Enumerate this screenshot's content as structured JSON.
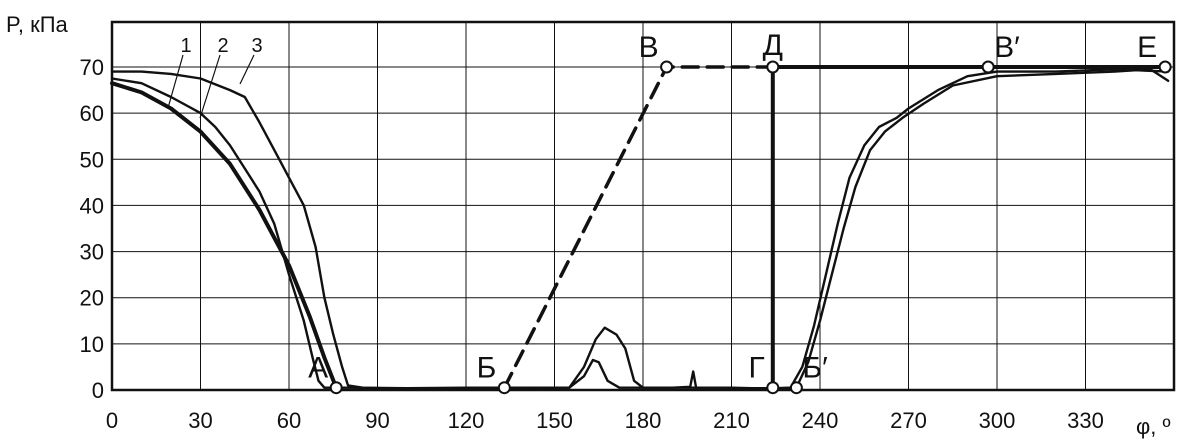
{
  "chart_data": {
    "type": "line",
    "ylabel": "P, кПа",
    "xlabel": "φ, º",
    "xlim": [
      0,
      360
    ],
    "ylim": [
      0,
      70
    ],
    "x_ticks": [
      0,
      30,
      60,
      90,
      120,
      150,
      180,
      210,
      240,
      270,
      300,
      330
    ],
    "y_ticks": [
      0,
      10,
      20,
      30,
      40,
      50,
      60,
      70
    ],
    "grid": true,
    "colors": {
      "line": "#111111",
      "marker_fill": "#ffffff"
    },
    "series": [
      {
        "name": "1",
        "style": "thick",
        "points": [
          [
            0,
            66.5
          ],
          [
            10,
            64.5
          ],
          [
            20,
            61
          ],
          [
            30,
            56
          ],
          [
            40,
            49
          ],
          [
            50,
            39
          ],
          [
            60,
            27
          ],
          [
            67,
            16
          ],
          [
            72,
            7
          ],
          [
            76,
            0.5
          ]
        ]
      },
      {
        "name": "2",
        "style": "thin",
        "points": [
          [
            0,
            67.5
          ],
          [
            10,
            66.5
          ],
          [
            20,
            63.5
          ],
          [
            30,
            60
          ],
          [
            35,
            57
          ],
          [
            40,
            53
          ],
          [
            45,
            48
          ],
          [
            50,
            43
          ],
          [
            55,
            36
          ],
          [
            60,
            25
          ],
          [
            65,
            15
          ],
          [
            68,
            7
          ],
          [
            70,
            2
          ],
          [
            72,
            0.5
          ],
          [
            80,
            0.5
          ],
          [
            100,
            0.3
          ],
          [
            130,
            0.4
          ],
          [
            155,
            0.5
          ],
          [
            160,
            3
          ],
          [
            163,
            6.5
          ],
          [
            165,
            6
          ],
          [
            168,
            2
          ],
          [
            172,
            0.5
          ],
          [
            190,
            0.5
          ],
          [
            210,
            0.5
          ],
          [
            222,
            0.3
          ],
          [
            232,
            0.5
          ],
          [
            236,
            6
          ],
          [
            240,
            15
          ],
          [
            244,
            25
          ],
          [
            248,
            35
          ],
          [
            252,
            44
          ],
          [
            257,
            52
          ],
          [
            262,
            56
          ],
          [
            268,
            59
          ],
          [
            275,
            62
          ],
          [
            285,
            66
          ],
          [
            300,
            68
          ],
          [
            320,
            68.5
          ],
          [
            340,
            69
          ],
          [
            352,
            69.5
          ],
          [
            358,
            67
          ]
        ]
      },
      {
        "name": "3",
        "style": "thin",
        "points": [
          [
            0,
            69
          ],
          [
            10,
            69
          ],
          [
            20,
            68.5
          ],
          [
            30,
            67.5
          ],
          [
            40,
            65
          ],
          [
            45,
            63.5
          ],
          [
            50,
            58
          ],
          [
            55,
            52
          ],
          [
            60,
            46
          ],
          [
            65,
            40
          ],
          [
            69,
            31
          ],
          [
            72,
            20
          ],
          [
            75,
            12
          ],
          [
            78,
            5
          ],
          [
            80,
            1
          ],
          [
            85,
            0.5
          ],
          [
            100,
            0.4
          ],
          [
            120,
            0.5
          ],
          [
            140,
            0.5
          ],
          [
            155,
            0.5
          ],
          [
            160,
            5
          ],
          [
            164,
            11
          ],
          [
            167,
            13.5
          ],
          [
            171,
            12
          ],
          [
            174,
            9
          ],
          [
            177,
            2
          ],
          [
            180,
            0.5
          ],
          [
            190,
            0.5
          ],
          [
            196,
            0.7
          ],
          [
            197,
            4
          ],
          [
            198,
            0.5
          ],
          [
            210,
            0.4
          ],
          [
            225,
            0.4
          ],
          [
            230,
            0.5
          ],
          [
            234,
            5
          ],
          [
            238,
            14
          ],
          [
            242,
            25
          ],
          [
            246,
            36
          ],
          [
            250,
            46
          ],
          [
            255,
            53
          ],
          [
            260,
            57
          ],
          [
            266,
            59
          ],
          [
            270,
            61
          ],
          [
            280,
            65
          ],
          [
            290,
            68
          ],
          [
            300,
            69
          ],
          [
            320,
            69
          ],
          [
            340,
            69.5
          ],
          [
            358,
            69
          ]
        ]
      },
      {
        "name": "dashed",
        "style": "dashed",
        "points": [
          [
            133,
            0.5
          ],
          [
            188,
            70
          ],
          [
            224,
            70
          ]
        ]
      },
      {
        "name": "step",
        "style": "thick",
        "points": [
          [
            224,
            0.5
          ],
          [
            224,
            70
          ],
          [
            357,
            70
          ]
        ]
      }
    ],
    "annotations": [
      {
        "label": "А",
        "x": 76,
        "y": 0.5,
        "anchor": "left"
      },
      {
        "label": "Б",
        "x": 133,
        "y": 0.5,
        "anchor": "left"
      },
      {
        "label": "В",
        "x": 188,
        "y": 70,
        "anchor": "left"
      },
      {
        "label": "Д",
        "x": 224,
        "y": 70,
        "anchor": "above"
      },
      {
        "label": "Г",
        "x": 224,
        "y": 0.5,
        "anchor": "left"
      },
      {
        "label": "Б′",
        "x": 232,
        "y": 0.5,
        "anchor": "right"
      },
      {
        "label": "В′",
        "x": 297,
        "y": 70,
        "anchor": "right"
      },
      {
        "label": "Е",
        "x": 357,
        "y": 70,
        "anchor": "left"
      }
    ],
    "curve_labels": [
      "1",
      "2",
      "3"
    ]
  }
}
